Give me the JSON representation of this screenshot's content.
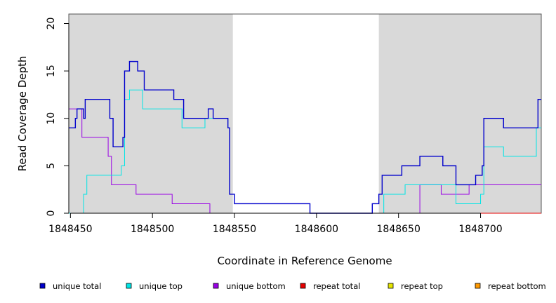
{
  "chart_data": {
    "type": "line",
    "xlabel": "Coordinate in Reference Genome",
    "ylabel": "Read Coverage Depth",
    "xlim": [
      1848449,
      1848737
    ],
    "ylim": [
      0,
      21
    ],
    "x_ticks": [
      1848450,
      1848500,
      1848550,
      1848600,
      1848650,
      1848700
    ],
    "x_tick_labels": [
      "1848450",
      "1848500",
      "1848550",
      "1848600",
      "1848650",
      "1848700"
    ],
    "y_ticks": [
      0,
      5,
      10,
      15,
      20
    ],
    "y_tick_labels": [
      "0",
      "5",
      "10",
      "15",
      "20"
    ],
    "shaded_regions": [
      [
        1848449,
        1848549
      ],
      [
        1848638,
        1848737
      ]
    ],
    "shade_color": "#d9d9d9",
    "grid": false,
    "legend_position": "bottom",
    "series": [
      {
        "name": "unique total",
        "color": "#0000cc",
        "x": [
          1848449,
          1848453,
          1848454,
          1848458,
          1848459,
          1848474,
          1848476,
          1848482,
          1848483,
          1848486,
          1848491,
          1848495,
          1848513,
          1848519,
          1848534,
          1848537,
          1848546,
          1848547,
          1848550,
          1848596,
          1848634,
          1848638,
          1848640,
          1848652,
          1848663,
          1848677,
          1848685,
          1848697,
          1848699,
          1848701,
          1848702,
          1848714,
          1848735,
          1848737
        ],
        "y": [
          9,
          10,
          11,
          10,
          12,
          10,
          7,
          8,
          15,
          16,
          15,
          13,
          12,
          10,
          11,
          10,
          9,
          2,
          1,
          0,
          1,
          2,
          4,
          5,
          6,
          5,
          3,
          4,
          4,
          5,
          10,
          9,
          12,
          12
        ]
      },
      {
        "name": "unique top",
        "color": "#00e5e5",
        "x": [
          1848449,
          1848458,
          1848460,
          1848481,
          1848483,
          1848486,
          1848494,
          1848518,
          1848532,
          1848535,
          1848546,
          1848547,
          1848550,
          1848596,
          1848638,
          1848641,
          1848654,
          1848685,
          1848700,
          1848702,
          1848714,
          1848734,
          1848737
        ],
        "y": [
          0,
          2,
          4,
          5,
          12,
          13,
          11,
          9,
          10,
          10,
          9,
          2,
          1,
          0,
          0,
          2,
          3,
          1,
          2,
          7,
          6,
          9,
          9
        ]
      },
      {
        "name": "unique bottom",
        "color": "#9900e5",
        "x": [
          1848449,
          1848457,
          1848473,
          1848475,
          1848490,
          1848512,
          1848535,
          1848638,
          1848663,
          1848676,
          1848693,
          1848695,
          1848737
        ],
        "y": [
          11,
          8,
          6,
          3,
          2,
          1,
          0,
          0,
          3,
          2,
          3,
          3,
          3
        ]
      },
      {
        "name": "repeat total",
        "color": "#e50000",
        "x": [
          1848449,
          1848737
        ],
        "y": [
          0,
          0
        ]
      },
      {
        "name": "repeat top",
        "color": "#e5e500",
        "x": [
          1848449,
          1848737
        ],
        "y": [
          0,
          0
        ]
      },
      {
        "name": "repeat bottom",
        "color": "#ff9900",
        "x": [
          1848449,
          1848737
        ],
        "y": [
          0,
          0
        ]
      }
    ]
  }
}
